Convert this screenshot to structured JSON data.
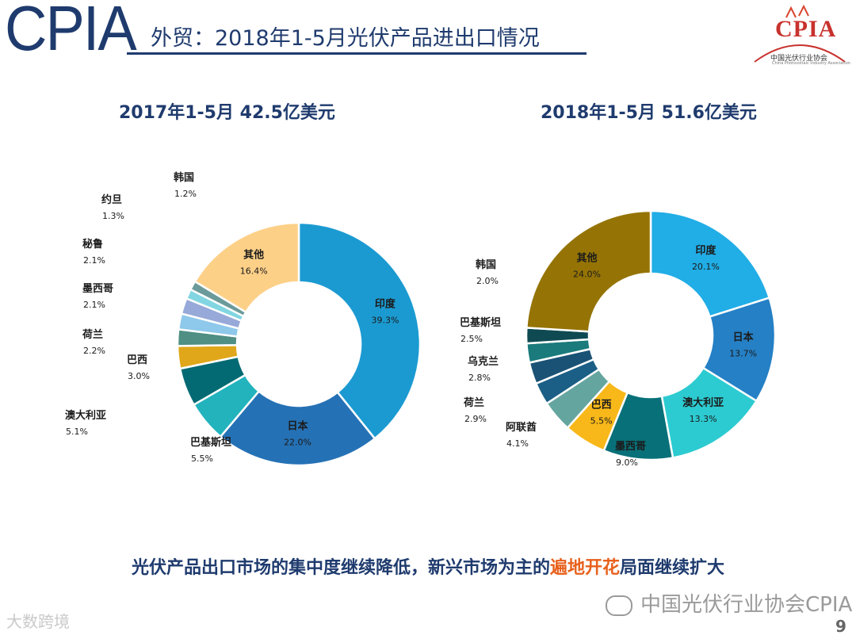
{
  "header": {
    "logo_text": "CPIA",
    "title": "外贸：2018年1-5月光伏产品进出口情况",
    "org_mark": "CPIA",
    "org_name_cn": "中国光伏行业协会",
    "org_name_en": "China Photovoltaic Industry Association"
  },
  "colors": {
    "brand_blue": "#1f3b6e",
    "highlight_orange": "#e8601c"
  },
  "chart_data": [
    {
      "type": "pie",
      "donut": true,
      "title": "2017年1-5月 42.5亿美元",
      "slices": [
        {
          "label": "印度",
          "value": 39.3,
          "display": "39.3%",
          "color": "#1b9ad1",
          "label_inside": true
        },
        {
          "label": "日本",
          "value": 22.0,
          "display": "22.0%",
          "color": "#2571b5",
          "label_inside": true
        },
        {
          "label": "巴基斯坦",
          "value": 5.5,
          "display": "5.5%",
          "color": "#22b3bd",
          "label_inside": false
        },
        {
          "label": "澳大利亚",
          "value": 5.1,
          "display": "5.1%",
          "color": "#036a73",
          "label_inside": false
        },
        {
          "label": "巴西",
          "value": 3.0,
          "display": "3.0%",
          "color": "#e0a71b",
          "label_inside": false
        },
        {
          "label": "荷兰",
          "value": 2.2,
          "display": "2.2%",
          "color": "#4f8f84",
          "label_inside": false
        },
        {
          "label": "墨西哥",
          "value": 2.1,
          "display": "2.1%",
          "color": "#8ec8ea",
          "label_inside": false
        },
        {
          "label": "秘鲁",
          "value": 2.1,
          "display": "2.1%",
          "color": "#97a9d8",
          "label_inside": false
        },
        {
          "label": "约旦",
          "value": 1.3,
          "display": "1.3%",
          "color": "#82d6e2",
          "label_inside": false
        },
        {
          "label": "韩国",
          "value": 1.2,
          "display": "1.2%",
          "color": "#6b9a9a",
          "label_inside": false
        },
        {
          "label": "其他",
          "value": 16.4,
          "display": "16.4%",
          "color": "#fdd088",
          "label_inside": true
        }
      ]
    },
    {
      "type": "pie",
      "donut": true,
      "title": "2018年1-5月 51.6亿美元",
      "slices": [
        {
          "label": "印度",
          "value": 20.1,
          "display": "20.1%",
          "color": "#21ade6",
          "label_inside": true
        },
        {
          "label": "日本",
          "value": 13.7,
          "display": "13.7%",
          "color": "#2580c5",
          "label_inside": true
        },
        {
          "label": "澳大利亚",
          "value": 13.3,
          "display": "13.3%",
          "color": "#2ccbd1",
          "label_inside": true
        },
        {
          "label": "墨西哥",
          "value": 9.0,
          "display": "9.0%",
          "color": "#087078",
          "label_inside": false
        },
        {
          "label": "巴西",
          "value": 5.5,
          "display": "5.5%",
          "color": "#f8b819",
          "label_inside": true
        },
        {
          "label": "阿联酋",
          "value": 4.1,
          "display": "4.1%",
          "color": "#65a59f",
          "label_inside": false
        },
        {
          "label": "荷兰",
          "value": 2.9,
          "display": "2.9%",
          "color": "#1b5f86",
          "label_inside": false
        },
        {
          "label": "乌克兰",
          "value": 2.8,
          "display": "2.8%",
          "color": "#1a5275",
          "label_inside": false
        },
        {
          "label": "巴基斯坦",
          "value": 2.5,
          "display": "2.5%",
          "color": "#1a7a7c",
          "label_inside": false
        },
        {
          "label": "韩国",
          "value": 2.0,
          "display": "2.0%",
          "color": "#0f4a52",
          "label_inside": false
        },
        {
          "label": "其他",
          "value": 24.0,
          "display": "24.0%",
          "color": "#957405",
          "label_inside": true
        }
      ]
    }
  ],
  "conclusion": {
    "before": "光伏产品出口市场的集中度继续降低，新兴市场为主的",
    "highlight": "遍地开花",
    "after": "局面继续扩大"
  },
  "footer": {
    "watermark": "中国光伏行业协会CPIA",
    "watermark_secondary": "大数跨境",
    "page_number": "9"
  }
}
